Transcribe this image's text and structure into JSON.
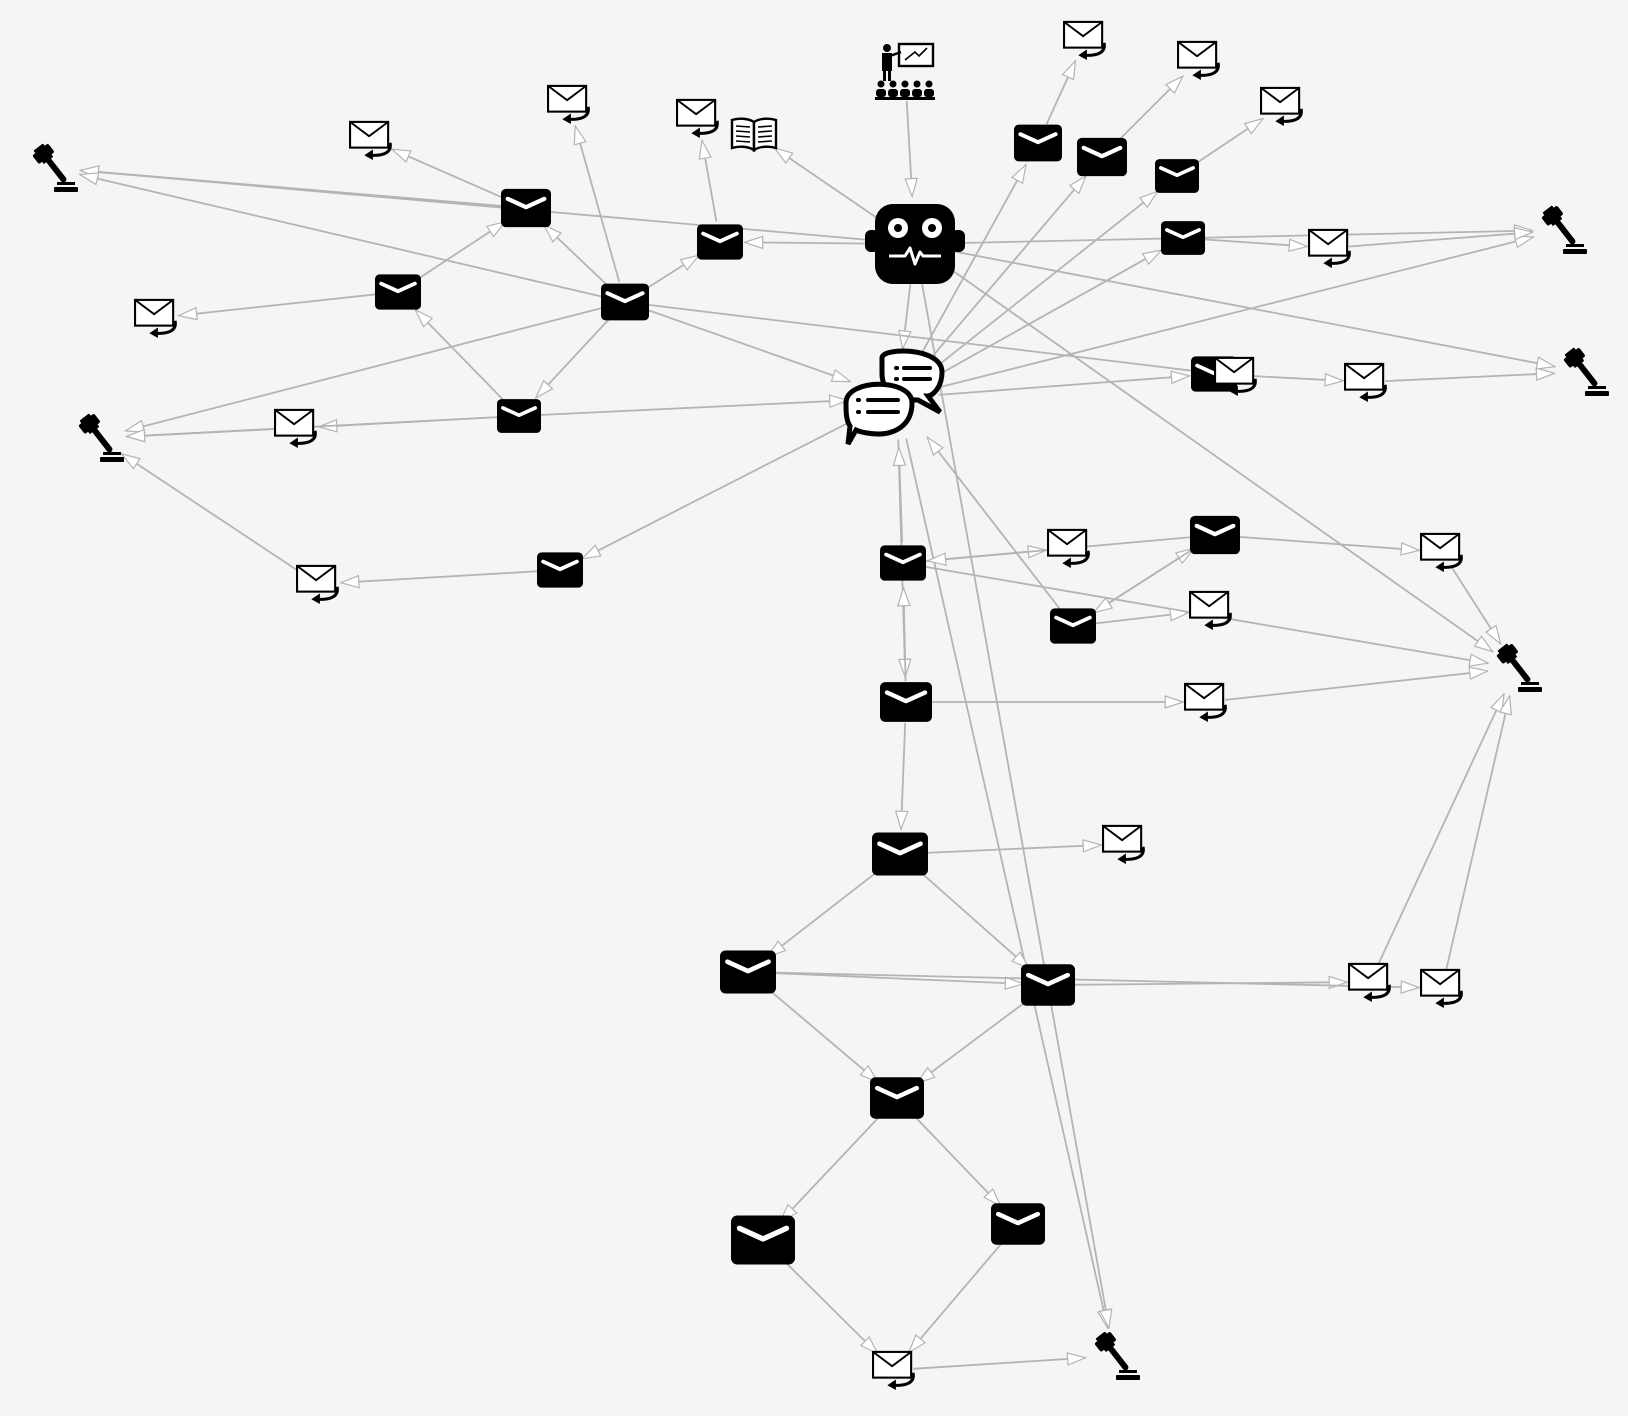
{
  "diagram": {
    "background": "#f5f5f5",
    "edge_color": "#b4b4b4",
    "node_color": "#000000",
    "node_kinds": {
      "agent": "robot-icon",
      "conversation": "chat-bubbles-icon",
      "message": "envelope-icon",
      "reply": "mail-reply-icon",
      "decision": "gavel-icon",
      "training": "presenter-icon",
      "reference": "open-book-icon"
    },
    "nodes": [
      {
        "id": "agent",
        "kind": "agent"
      },
      {
        "id": "conv",
        "kind": "conversation"
      },
      {
        "id": "train",
        "kind": "training"
      },
      {
        "id": "book",
        "kind": "reference"
      },
      {
        "id": "g1",
        "kind": "decision"
      },
      {
        "id": "g2",
        "kind": "decision"
      },
      {
        "id": "g3",
        "kind": "decision"
      },
      {
        "id": "g4",
        "kind": "decision"
      },
      {
        "id": "g5",
        "kind": "decision"
      },
      {
        "id": "g6",
        "kind": "decision"
      },
      {
        "id": "m1",
        "kind": "message"
      },
      {
        "id": "m2",
        "kind": "message"
      },
      {
        "id": "m3",
        "kind": "message"
      },
      {
        "id": "m4",
        "kind": "message"
      },
      {
        "id": "m5",
        "kind": "message"
      },
      {
        "id": "m6",
        "kind": "message"
      },
      {
        "id": "m7",
        "kind": "message"
      },
      {
        "id": "m8",
        "kind": "message"
      },
      {
        "id": "m9",
        "kind": "message"
      },
      {
        "id": "m10",
        "kind": "message"
      },
      {
        "id": "m11",
        "kind": "message"
      },
      {
        "id": "m12",
        "kind": "message"
      },
      {
        "id": "m13",
        "kind": "message"
      },
      {
        "id": "m14",
        "kind": "message"
      },
      {
        "id": "m15",
        "kind": "message"
      },
      {
        "id": "m16",
        "kind": "message"
      },
      {
        "id": "m17",
        "kind": "message"
      },
      {
        "id": "m18",
        "kind": "message"
      },
      {
        "id": "m19",
        "kind": "message"
      },
      {
        "id": "m20",
        "kind": "message"
      },
      {
        "id": "m21",
        "kind": "message"
      },
      {
        "id": "m22",
        "kind": "message"
      },
      {
        "id": "m23",
        "kind": "message"
      },
      {
        "id": "r1",
        "kind": "reply"
      },
      {
        "id": "r2",
        "kind": "reply"
      },
      {
        "id": "r3",
        "kind": "reply"
      },
      {
        "id": "r4",
        "kind": "reply"
      },
      {
        "id": "r5",
        "kind": "reply"
      },
      {
        "id": "r6",
        "kind": "reply"
      },
      {
        "id": "r7",
        "kind": "reply"
      },
      {
        "id": "r8",
        "kind": "reply"
      },
      {
        "id": "r9",
        "kind": "reply"
      },
      {
        "id": "r10",
        "kind": "reply"
      },
      {
        "id": "r11",
        "kind": "reply"
      },
      {
        "id": "r12",
        "kind": "reply"
      },
      {
        "id": "r13",
        "kind": "reply"
      },
      {
        "id": "r14",
        "kind": "reply"
      },
      {
        "id": "r15",
        "kind": "reply"
      },
      {
        "id": "r16",
        "kind": "reply"
      },
      {
        "id": "r17",
        "kind": "reply"
      },
      {
        "id": "r18",
        "kind": "reply"
      },
      {
        "id": "r19",
        "kind": "reply"
      },
      {
        "id": "r20",
        "kind": "reply"
      }
    ],
    "edges": [
      {
        "from": "train",
        "to": "agent"
      },
      {
        "from": "agent",
        "to": "book"
      },
      {
        "from": "agent",
        "to": "g1"
      },
      {
        "from": "agent",
        "to": "g2"
      },
      {
        "from": "agent",
        "to": "g3"
      },
      {
        "from": "agent",
        "to": "g5"
      },
      {
        "from": "agent",
        "to": "conv"
      },
      {
        "from": "agent",
        "to": "m5"
      },
      {
        "from": "conv",
        "to": "m7"
      },
      {
        "from": "conv",
        "to": "m8"
      },
      {
        "from": "conv",
        "to": "m9"
      },
      {
        "from": "conv",
        "to": "m10"
      },
      {
        "from": "conv",
        "to": "m11"
      },
      {
        "from": "conv",
        "to": "g2"
      },
      {
        "from": "conv",
        "to": "g6"
      },
      {
        "from": "conv",
        "to": "m15"
      },
      {
        "from": "m7",
        "to": "r9"
      },
      {
        "from": "m8",
        "to": "r10"
      },
      {
        "from": "m9",
        "to": "r11"
      },
      {
        "from": "m10",
        "to": "r12"
      },
      {
        "from": "r12",
        "to": "g2"
      },
      {
        "from": "m11",
        "to": "r13"
      },
      {
        "from": "r13",
        "to": "g3"
      },
      {
        "from": "m1",
        "to": "r1"
      },
      {
        "from": "m1",
        "to": "g1"
      },
      {
        "from": "m2",
        "to": "m1"
      },
      {
        "from": "m2",
        "to": "r2"
      },
      {
        "from": "m4",
        "to": "m2"
      },
      {
        "from": "m3",
        "to": "m1"
      },
      {
        "from": "m3",
        "to": "r3"
      },
      {
        "from": "m3",
        "to": "m5"
      },
      {
        "from": "m3",
        "to": "m4"
      },
      {
        "from": "m3",
        "to": "g1"
      },
      {
        "from": "m3",
        "to": "g4"
      },
      {
        "from": "m3",
        "to": "conv"
      },
      {
        "from": "m5",
        "to": "r4"
      },
      {
        "from": "m4",
        "to": "r5"
      },
      {
        "from": "m4",
        "to": "conv"
      },
      {
        "from": "r5",
        "to": "g4"
      },
      {
        "from": "m4",
        "to": "g4"
      },
      {
        "from": "m6",
        "to": "r6"
      },
      {
        "from": "conv",
        "to": "m6"
      },
      {
        "from": "r6",
        "to": "g4"
      },
      {
        "from": "m12",
        "to": "conv"
      },
      {
        "from": "m12",
        "to": "r14"
      },
      {
        "from": "m12",
        "to": "g5"
      },
      {
        "from": "m15",
        "to": "m12"
      },
      {
        "from": "m13",
        "to": "r15"
      },
      {
        "from": "m13",
        "to": "m14"
      },
      {
        "from": "m14",
        "to": "m13"
      },
      {
        "from": "m14",
        "to": "m12"
      },
      {
        "from": "m14",
        "to": "r16"
      },
      {
        "from": "r16",
        "to": "g5"
      },
      {
        "from": "m15",
        "to": "r17"
      },
      {
        "from": "m15",
        "to": "m16"
      },
      {
        "from": "r17",
        "to": "g5"
      },
      {
        "from": "m16",
        "to": "r7"
      },
      {
        "from": "m16",
        "to": "m17"
      },
      {
        "from": "m16",
        "to": "m18"
      },
      {
        "from": "m17",
        "to": "m18"
      },
      {
        "from": "m17",
        "to": "m19"
      },
      {
        "from": "m18",
        "to": "m19"
      },
      {
        "from": "m18",
        "to": "r18"
      },
      {
        "from": "m17",
        "to": "r19"
      },
      {
        "from": "r18",
        "to": "g5"
      },
      {
        "from": "r19",
        "to": "g5"
      },
      {
        "from": "m19",
        "to": "m20"
      },
      {
        "from": "m19",
        "to": "m21"
      },
      {
        "from": "m20",
        "to": "r20"
      },
      {
        "from": "m21",
        "to": "r20"
      },
      {
        "from": "r20",
        "to": "g6"
      },
      {
        "from": "agent",
        "to": "g6"
      },
      {
        "from": "m13",
        "to": "conv"
      },
      {
        "from": "m3",
        "to": "r8"
      },
      {
        "from": "agent",
        "to": "m22"
      },
      {
        "from": "m22",
        "to": "r8"
      },
      {
        "from": "conv",
        "to": "m23"
      }
    ]
  }
}
